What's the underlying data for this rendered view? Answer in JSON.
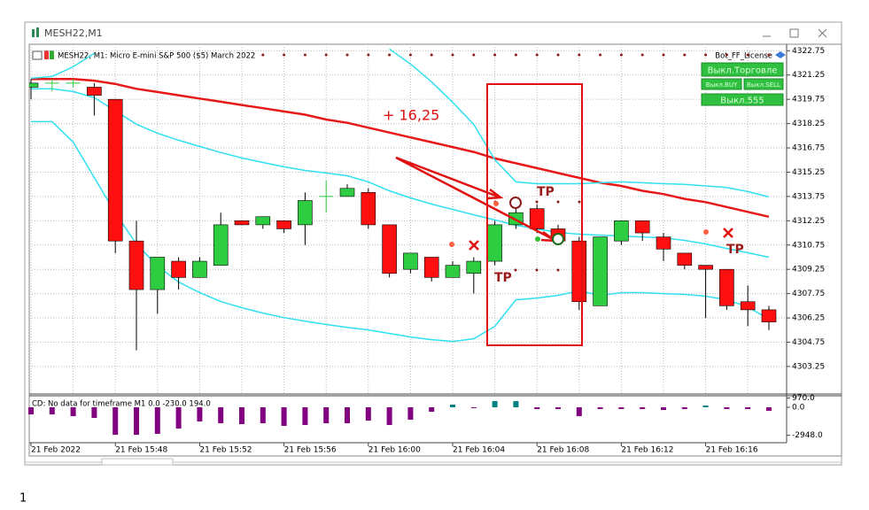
{
  "window_title": "MESH22,M1",
  "license": "Bot_FF_License",
  "buttons": [
    "Выкл.Торговле",
    "Выкл.BUY",
    "Выкл.SELL",
    "Выкл.555"
  ],
  "annotations": [
    "+ 16,25",
    "TP",
    "TP",
    "TP"
  ],
  "caption": "1",
  "chart_data": [
    {
      "type": "candlestick",
      "title": "MESH22, M1:  Micro E-mini S&P 500 ($5) March 2022",
      "categories": [
        "21 Feb 2022",
        null,
        null,
        null,
        "21 Feb 15:48",
        null,
        null,
        null,
        "21 Feb 15:52",
        null,
        null,
        null,
        "21 Feb 15:56",
        null,
        null,
        null,
        "21 Feb 16:00",
        null,
        null,
        null,
        "21 Feb 16:04",
        null,
        null,
        null,
        "21 Feb 16:08",
        null,
        null,
        null,
        "21 Feb 16:12",
        null,
        null,
        null,
        "21 Feb 16:16",
        null,
        null,
        null
      ],
      "open": [
        4320.5,
        4320.75,
        4320.75,
        4320.5,
        4319.75,
        4311.0,
        4308.0,
        4309.75,
        4308.75,
        4309.5,
        4312.25,
        4312.0,
        4312.25,
        4312.0,
        4313.75,
        4313.75,
        4314.0,
        4312.0,
        4309.25,
        4310.0,
        4308.75,
        4309.0,
        4309.75,
        4312.0,
        4313.0,
        4311.75,
        4311.0,
        4307.0,
        4311.0,
        4312.25,
        4311.25,
        4310.25,
        4309.5,
        4309.25,
        4307.25,
        4306.75
      ],
      "high": [
        4321.0,
        4321.0,
        4321.0,
        4320.75,
        4319.75,
        4312.25,
        4310.0,
        4310.0,
        4310.0,
        4312.75,
        4312.25,
        4312.5,
        4312.25,
        4314.0,
        4314.75,
        4314.5,
        4314.25,
        4312.0,
        4310.25,
        4310.0,
        4309.75,
        4310.0,
        4312.25,
        4313.0,
        4313.25,
        4312.0,
        4311.25,
        4311.25,
        4312.25,
        4312.25,
        4311.5,
        4310.25,
        4309.5,
        4309.25,
        4308.25,
        4307.0
      ],
      "low": [
        4319.75,
        4320.25,
        4320.5,
        4318.75,
        4310.25,
        4304.25,
        4306.5,
        4308.0,
        4308.75,
        4309.5,
        4312.0,
        4311.75,
        4311.5,
        4310.75,
        4312.75,
        4313.75,
        4311.75,
        4308.75,
        4309.0,
        4308.5,
        4308.75,
        4307.75,
        4309.5,
        4311.75,
        4311.5,
        4310.75,
        4306.75,
        4307.0,
        4310.75,
        4311.0,
        4309.75,
        4309.25,
        4306.25,
        4306.75,
        4305.75,
        4305.5
      ],
      "close": [
        4320.75,
        4320.75,
        4320.75,
        4320.0,
        4311.0,
        4308.0,
        4310.0,
        4308.75,
        4309.75,
        4312.0,
        4312.0,
        4312.5,
        4311.75,
        4313.5,
        4313.75,
        4314.25,
        4312.0,
        4309.0,
        4310.25,
        4308.75,
        4309.5,
        4309.75,
        4312.0,
        4312.75,
        4311.75,
        4311.0,
        4307.25,
        4311.25,
        4312.25,
        4311.5,
        4310.5,
        4309.5,
        4309.25,
        4307.0,
        4306.75,
        4306.0
      ],
      "up_color": "#2ecc40",
      "down_color": "#ff1010",
      "lines": [
        {
          "color": "#e81818",
          "values": [
            4321.0,
            4321.0,
            4321.0,
            4320.9,
            4320.7,
            4320.4,
            4320.2,
            4320.0,
            4319.8,
            4319.6,
            4319.4,
            4319.2,
            4319.0,
            4318.8,
            4318.5,
            4318.3,
            4318.0,
            4317.7,
            4317.4,
            4317.1,
            4316.8,
            4316.5,
            4316.1,
            4315.8,
            4315.5,
            4315.2,
            4314.9,
            4314.6,
            4314.4,
            4314.1,
            4313.9,
            4313.6,
            4313.4,
            4313.1,
            4312.8,
            4312.5
          ]
        },
        {
          "color": "#30e0f0",
          "values": [
            4321.05,
            4321.16,
            4321.76,
            4322.59,
            null,
            null,
            null,
            null,
            null,
            null,
            null,
            null,
            null,
            null,
            null,
            null,
            null,
            4322.86,
            4321.93,
            4320.83,
            4319.57,
            4318.2,
            4316.02,
            4314.65,
            4314.54,
            4314.54,
            4314.54,
            4314.6,
            4314.65,
            4314.6,
            4314.54,
            4314.5,
            4314.4,
            4314.3,
            4314.05,
            4313.72
          ]
        },
        {
          "color": "#30e0f0",
          "values": [
            4320.4,
            4320.4,
            4320.23,
            4319.85,
            4319.03,
            4318.21,
            4317.66,
            4317.22,
            4316.84,
            4316.46,
            4316.13,
            4315.85,
            4315.58,
            4315.36,
            4315.2,
            4315.03,
            4314.65,
            4314.1,
            4313.66,
            4313.28,
            4312.95,
            4312.62,
            4312.3,
            4311.97,
            4311.75,
            4311.53,
            4311.42,
            4311.36,
            4311.31,
            4311.25,
            4311.2,
            4311.04,
            4310.82,
            4310.54,
            4310.27,
            4310.0
          ]
        },
        {
          "color": "#30e0f0",
          "values": [
            4318.37,
            4318.37,
            4317.11,
            4314.92,
            4312.73,
            4310.82,
            4309.45,
            4308.46,
            4307.81,
            4307.26,
            4306.88,
            4306.55,
            4306.27,
            4306.05,
            4305.84,
            4305.67,
            4305.51,
            4305.29,
            4305.07,
            4304.91,
            4304.8,
            4304.96,
            4305.73,
            4307.37,
            4307.48,
            4307.64,
            4307.92,
            4307.64,
            4307.81,
            4307.81,
            4307.75,
            4307.7,
            4307.59,
            4307.37,
            4306.93,
            4306.16
          ]
        }
      ],
      "ylim": [
        4301.55,
        4323.15
      ],
      "yticks": [
        4322.75,
        4321.25,
        4319.75,
        4318.25,
        4316.75,
        4315.25,
        4313.75,
        4312.25,
        4310.75,
        4309.25,
        4307.75,
        4306.25,
        4304.75,
        4303.25
      ],
      "grid": true
    },
    {
      "type": "bar",
      "title": "CD: No data for timeframe M1 0.0 -230.0 194.0",
      "values": [
        -750,
        -750,
        -930,
        -1120,
        -2890,
        -2900,
        -2800,
        -2240,
        -1490,
        -1680,
        -1770,
        -1680,
        -1960,
        -1870,
        -1680,
        -1680,
        -1400,
        -1870,
        -1310,
        -470,
        280,
        -90,
        650,
        650,
        -190,
        -190,
        -930,
        -190,
        -190,
        -190,
        -280,
        -190,
        190,
        -190,
        -190,
        -370
      ],
      "color": "#800080",
      "positive_color": "#008080",
      "ylim": [
        -3732,
        1213
      ],
      "yticks": [
        {
          "value": 970,
          "label": "970.0"
        },
        {
          "value": 0,
          "label": "0.0"
        },
        {
          "value": -2948,
          "label": "-2948.0"
        }
      ]
    }
  ]
}
